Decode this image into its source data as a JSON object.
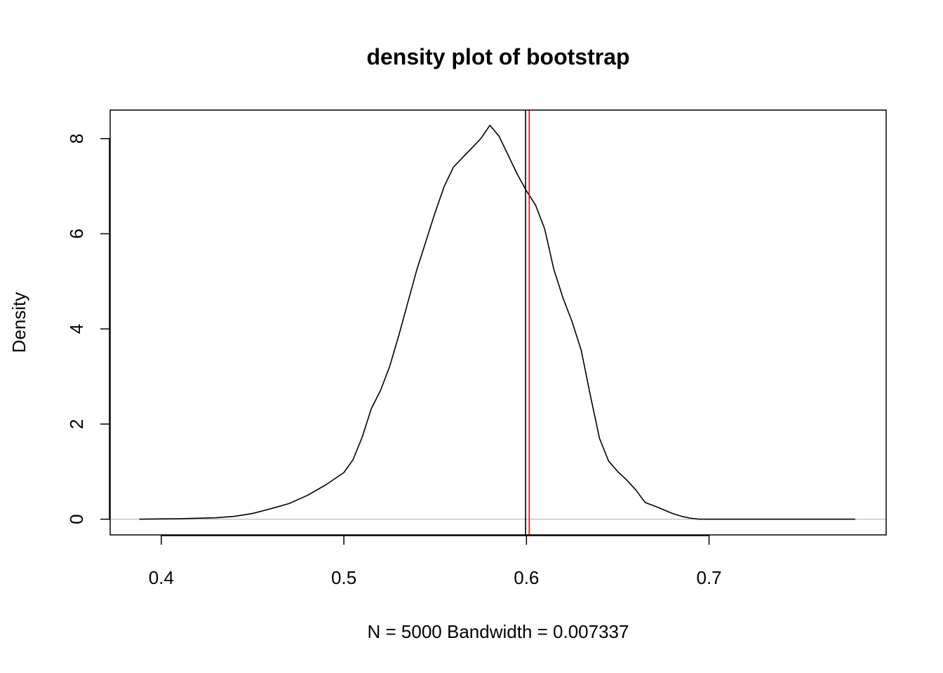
{
  "chart_data": {
    "type": "line",
    "title": "density plot of bootstrap",
    "xlabel": "N = 5000   Bandwidth = 0.007337",
    "ylabel": "Density",
    "xlim": [
      0.372,
      0.797
    ],
    "ylim": [
      -0.33,
      8.6
    ],
    "x_ticks": [
      0.4,
      0.5,
      0.6,
      0.7
    ],
    "x_tick_labels": [
      "0.4",
      "0.5",
      "0.6",
      "0.7"
    ],
    "y_ticks": [
      0,
      2,
      4,
      6,
      8
    ],
    "y_tick_labels": [
      "0",
      "2",
      "4",
      "6",
      "8"
    ],
    "grid": false,
    "legend": "none",
    "series": [
      {
        "x": [
          0.388,
          0.41,
          0.43,
          0.44,
          0.45,
          0.46,
          0.47,
          0.48,
          0.49,
          0.5,
          0.505,
          0.51,
          0.515,
          0.52,
          0.525,
          0.53,
          0.535,
          0.54,
          0.545,
          0.55,
          0.555,
          0.56,
          0.565,
          0.57,
          0.575,
          0.58,
          0.585,
          0.59,
          0.595,
          0.6,
          0.605,
          0.61,
          0.615,
          0.62,
          0.625,
          0.63,
          0.635,
          0.64,
          0.645,
          0.65,
          0.655,
          0.66,
          0.665,
          0.67,
          0.675,
          0.68,
          0.685,
          0.69,
          0.695,
          0.7,
          0.705,
          0.71,
          0.715,
          0.72,
          0.73,
          0.74,
          0.75,
          0.76,
          0.77,
          0.78
        ],
        "values": [
          0.0,
          0.01,
          0.03,
          0.06,
          0.12,
          0.22,
          0.33,
          0.5,
          0.72,
          0.98,
          1.25,
          1.72,
          2.32,
          2.7,
          3.2,
          3.85,
          4.55,
          5.25,
          5.85,
          6.45,
          7.0,
          7.4,
          7.6,
          7.8,
          8.0,
          8.28,
          8.05,
          7.65,
          7.25,
          6.9,
          6.6,
          6.1,
          5.25,
          4.65,
          4.15,
          3.55,
          2.6,
          1.7,
          1.22,
          1.0,
          0.82,
          0.61,
          0.35,
          0.28,
          0.2,
          0.12,
          0.06,
          0.02,
          0.0,
          0.0,
          0.0,
          0.0,
          0.0,
          0.0,
          0.0,
          0.0,
          0.0,
          0.0,
          0.0,
          0.0
        ],
        "color": "#000000"
      }
    ],
    "vertical_lines": [
      {
        "x": 0.5995,
        "color": "#000000"
      },
      {
        "x": 0.6015,
        "color": "#ff0000"
      }
    ],
    "baseline": {
      "y": 0,
      "color": "#bebebe"
    }
  }
}
